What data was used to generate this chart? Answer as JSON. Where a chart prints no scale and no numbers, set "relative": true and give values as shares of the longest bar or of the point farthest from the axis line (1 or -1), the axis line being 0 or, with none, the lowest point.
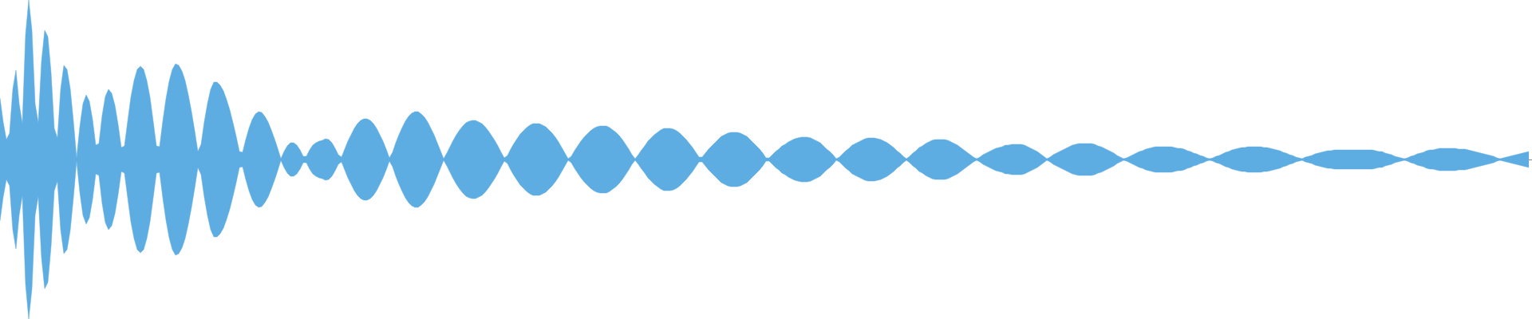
{
  "chart_data": {
    "type": "area",
    "relative": true,
    "categories": [
      null,
      null,
      null,
      null,
      null,
      null,
      null,
      null,
      null,
      null,
      null,
      null,
      null,
      null,
      null,
      null,
      null,
      null,
      null,
      null,
      null,
      null,
      null,
      null,
      null,
      null,
      null,
      null,
      null,
      null,
      null,
      null,
      null,
      null,
      null,
      null,
      null,
      null,
      null,
      null,
      null,
      null,
      null,
      null,
      null,
      null,
      null,
      null,
      null,
      null,
      null,
      null,
      null,
      null,
      null,
      null,
      null,
      null,
      null,
      null,
      null,
      null,
      null,
      null,
      null,
      null,
      null,
      null,
      null,
      null,
      null,
      null,
      null,
      null,
      null,
      null,
      null,
      null,
      null,
      null,
      null,
      null,
      null,
      null,
      null,
      null,
      null,
      null,
      null,
      null,
      null,
      null,
      null,
      null,
      null,
      null,
      null,
      null,
      null,
      null,
      null,
      null,
      null,
      null,
      null,
      null,
      null,
      null,
      null,
      null,
      null,
      null,
      null,
      null,
      null,
      null,
      null,
      null,
      null,
      null,
      null,
      null,
      null,
      null,
      null,
      null,
      null,
      null,
      null,
      null,
      null,
      null,
      null,
      null,
      null,
      null,
      null,
      null,
      null,
      null,
      null,
      null,
      null,
      null,
      null,
      null,
      null,
      null,
      null,
      null,
      null,
      null,
      null,
      null,
      null,
      null,
      null,
      null,
      null,
      null,
      null,
      null,
      null,
      null,
      null,
      null,
      null,
      null,
      null,
      null,
      null,
      null,
      null,
      null,
      null,
      null,
      null,
      null,
      null,
      null,
      null,
      null,
      null,
      null,
      null,
      null,
      null,
      null,
      null,
      null,
      null,
      null,
      null,
      null,
      null,
      null,
      null,
      null,
      null,
      null,
      null,
      null,
      null,
      null,
      null,
      null,
      null,
      null,
      null,
      null,
      null,
      null,
      null,
      null,
      null,
      null,
      null,
      null,
      null,
      null,
      null,
      null,
      null,
      null,
      null,
      null,
      null,
      null,
      null,
      null,
      null,
      null,
      null,
      null,
      null,
      null,
      null,
      null,
      null,
      null,
      null,
      null,
      null,
      null,
      null,
      null,
      null,
      null,
      null,
      null,
      null,
      null,
      null,
      null,
      null,
      null,
      null,
      null,
      null,
      null,
      null,
      null,
      null,
      null,
      null,
      null,
      null,
      null,
      null,
      null,
      null,
      null,
      null,
      null,
      null,
      null,
      null,
      null,
      null,
      null,
      null,
      null,
      null,
      null,
      null,
      null,
      null,
      null,
      null,
      null,
      null,
      null,
      null,
      null,
      null,
      null,
      null,
      null,
      null,
      null,
      null,
      null,
      null,
      null,
      null,
      null,
      null,
      null,
      null,
      null,
      null,
      null,
      null,
      null,
      null,
      null,
      null,
      null,
      null,
      null,
      null,
      null,
      null,
      null,
      null,
      null,
      null,
      null,
      null,
      null,
      null,
      null,
      null,
      null,
      null,
      null,
      null,
      null,
      null,
      null,
      null,
      null,
      null,
      null,
      null,
      null,
      null,
      null,
      null,
      null,
      null,
      null,
      null,
      null,
      null,
      null,
      null,
      null,
      null,
      null,
      null,
      null,
      null,
      null,
      null,
      null,
      null,
      null,
      null,
      null,
      null,
      null,
      null,
      null,
      null,
      null,
      null,
      null,
      null,
      null,
      null,
      null,
      null,
      null,
      null,
      null,
      null,
      null,
      null,
      null,
      null,
      null,
      null,
      null,
      null,
      null,
      null,
      null,
      null,
      null,
      null,
      null,
      null,
      null,
      null,
      null,
      null,
      null,
      null,
      null,
      null,
      null,
      null,
      null,
      null,
      null,
      null,
      null,
      null,
      null,
      null,
      null,
      null,
      null,
      null,
      null,
      null,
      null,
      null,
      null,
      null,
      null,
      null,
      null,
      null,
      null,
      null,
      null,
      null,
      null,
      null,
      null,
      null,
      null,
      null,
      null,
      null,
      null,
      null,
      null,
      null,
      null,
      null,
      null,
      null,
      null,
      null,
      null,
      null,
      null,
      null,
      null,
      null,
      null,
      null,
      null,
      null,
      null,
      null,
      null,
      null,
      null,
      null,
      null,
      null,
      null,
      null,
      null,
      null,
      null
    ],
    "series": [
      {
        "color": "#5dade2",
        "values": [
          0.385,
          0.235,
          0.125,
          0.165,
          0.44,
          0.56,
          0.35,
          0.225,
          0.78,
          1,
          0.81,
          0.35,
          0.23,
          0.615,
          0.81,
          0.77,
          0.545,
          0.195,
          0.135,
          0.44,
          0.59,
          0.565,
          0.445,
          0.24,
          0.01,
          0.205,
          0.35,
          0.405,
          0.365,
          0.25,
          0.09,
          0.1,
          0.275,
          0.395,
          0.44,
          0.415,
          0.34,
          0.22,
          0.075,
          0.085,
          0.24,
          0.39,
          0.495,
          0.565,
          0.585,
          0.565,
          0.495,
          0.39,
          0.24,
          0.085,
          0.08,
          0.24,
          0.38,
          0.49,
          0.565,
          0.6,
          0.59,
          0.555,
          0.495,
          0.405,
          0.3,
          0.18,
          0.05,
          0.095,
          0.235,
          0.35,
          0.44,
          0.485,
          0.485,
          0.465,
          0.43,
          0.375,
          0.31,
          0.23,
          0.145,
          0.05,
          0.045,
          0.125,
          0.195,
          0.25,
          0.285,
          0.3,
          0.295,
          0.27,
          0.235,
          0.185,
          0.13,
          0.07,
          0.005,
          0.05,
          0.085,
          0.105,
          0.105,
          0.09,
          0.06,
          0.02,
          0.02,
          0.06,
          0.09,
          0.105,
          0.115,
          0.12,
          0.13,
          0.125,
          0.105,
          0.07,
          0.03,
          0.015,
          0.065,
          0.115,
          0.155,
          0.195,
          0.225,
          0.245,
          0.255,
          0.255,
          0.245,
          0.225,
          0.195,
          0.155,
          0.115,
          0.065,
          0.01,
          0.045,
          0.105,
          0.155,
          0.2,
          0.24,
          0.27,
          0.29,
          0.3,
          0.3,
          0.285,
          0.265,
          0.235,
          0.195,
          0.155,
          0.105,
          0.055,
          0.005,
          0.04,
          0.08,
          0.12,
          0.155,
          0.185,
          0.21,
          0.23,
          0.24,
          0.245,
          0.245,
          0.235,
          0.225,
          0.205,
          0.18,
          0.15,
          0.12,
          0.085,
          0.045,
          0.01,
          0.025,
          0.065,
          0.1,
          0.13,
          0.16,
          0.18,
          0.2,
          0.215,
          0.225,
          0.225,
          0.225,
          0.215,
          0.205,
          0.185,
          0.165,
          0.14,
          0.11,
          0.075,
          0.04,
          0.005,
          0.02,
          0.055,
          0.085,
          0.115,
          0.14,
          0.16,
          0.18,
          0.195,
          0.205,
          0.21,
          0.21,
          0.21,
          0.2,
          0.185,
          0.17,
          0.15,
          0.125,
          0.095,
          0.065,
          0.03,
          0.005,
          0.03,
          0.06,
          0.085,
          0.115,
          0.135,
          0.155,
          0.17,
          0.185,
          0.195,
          0.195,
          0.195,
          0.19,
          0.18,
          0.165,
          0.145,
          0.125,
          0.1,
          0.075,
          0.045,
          0.015,
          0.015,
          0.04,
          0.065,
          0.085,
          0.105,
          0.125,
          0.145,
          0.155,
          0.165,
          0.17,
          0.17,
          0.17,
          0.165,
          0.155,
          0.145,
          0.125,
          0.105,
          0.085,
          0.065,
          0.04,
          0.01,
          0.01,
          0.03,
          0.05,
          0.065,
          0.085,
          0.095,
          0.11,
          0.12,
          0.13,
          0.135,
          0.14,
          0.14,
          0.14,
          0.135,
          0.125,
          0.115,
          0.105,
          0.085,
          0.065,
          0.05,
          0.03,
          0.005,
          0.015,
          0.035,
          0.055,
          0.07,
          0.09,
          0.1,
          0.11,
          0.12,
          0.13,
          0.135,
          0.135,
          0.135,
          0.13,
          0.125,
          0.115,
          0.105,
          0.09,
          0.075,
          0.055,
          0.04,
          0.02,
          0.005,
          0.02,
          0.04,
          0.055,
          0.075,
          0.085,
          0.1,
          0.11,
          0.12,
          0.125,
          0.125,
          0.125,
          0.125,
          0.12,
          0.11,
          0.1,
          0.09,
          0.075,
          0.06,
          0.045,
          0.03,
          0.015,
          0.005,
          0.015,
          0.03,
          0.04,
          0.05,
          0.06,
          0.07,
          0.075,
          0.08,
          0.09,
          0.09,
          0.095,
          0.095,
          0.095,
          0.095,
          0.09,
          0.08,
          0.07,
          0.06,
          0.05,
          0.035,
          0.02,
          0.005,
          0.015,
          0.03,
          0.04,
          0.05,
          0.06,
          0.07,
          0.08,
          0.09,
          0.095,
          0.1,
          0.1,
          0.1,
          0.1,
          0.1,
          0.095,
          0.085,
          0.08,
          0.07,
          0.06,
          0.05,
          0.04,
          0.025,
          0.015,
          0.005,
          0.01,
          0.02,
          0.03,
          0.04,
          0.05,
          0.055,
          0.065,
          0.07,
          0.075,
          0.08,
          0.08,
          0.08,
          0.08,
          0.08,
          0.08,
          0.075,
          0.07,
          0.07,
          0.065,
          0.055,
          0.05,
          0.04,
          0.035,
          0.025,
          0.02,
          0.01,
          0.005,
          0.01,
          0.02,
          0.025,
          0.035,
          0.045,
          0.05,
          0.06,
          0.065,
          0.07,
          0.075,
          0.075,
          0.08,
          0.08,
          0.08,
          0.08,
          0.08,
          0.075,
          0.075,
          0.07,
          0.065,
          0.06,
          0.055,
          0.045,
          0.04,
          0.03,
          0.025,
          0.015,
          0.01,
          0.005,
          0.015,
          0.02,
          0.025,
          0.035,
          0.04,
          0.045,
          0.05,
          0.055,
          0.055,
          0.06,
          0.06,
          0.06,
          0.06,
          0.06,
          0.06,
          0.06,
          0.06,
          0.06,
          0.06,
          0.06,
          0.06,
          0.06,
          0.055,
          0.05,
          0.05,
          0.04,
          0.035,
          0.03,
          0.02,
          0.015,
          0.01,
          0.005,
          0.01,
          0.02,
          0.025,
          0.035,
          0.04,
          0.045,
          0.055,
          0.06,
          0.06,
          0.065,
          0.07,
          0.07,
          0.07,
          0.07,
          0.07,
          0.07,
          0.065,
          0.065,
          0.065,
          0.06,
          0.055,
          0.05,
          0.045,
          0.04,
          0.035,
          0.03,
          0.025,
          0.02,
          0.01,
          0.005,
          0.01,
          0.015,
          0.02,
          0.025,
          0.03,
          0.035,
          0.04,
          0.045,
          0.05
        ]
      },
      {
        "color": "#5dade2",
        "values": [
          -0.385,
          -0.235,
          -0.125,
          -0.165,
          -0.44,
          -0.56,
          -0.35,
          -0.225,
          -0.78,
          -1,
          -0.81,
          -0.35,
          -0.23,
          -0.615,
          -0.81,
          -0.77,
          -0.545,
          -0.195,
          -0.135,
          -0.44,
          -0.59,
          -0.565,
          -0.445,
          -0.24,
          -0.01,
          -0.205,
          -0.35,
          -0.405,
          -0.365,
          -0.25,
          -0.09,
          -0.1,
          -0.275,
          -0.395,
          -0.44,
          -0.415,
          -0.34,
          -0.22,
          -0.075,
          -0.085,
          -0.24,
          -0.39,
          -0.495,
          -0.565,
          -0.585,
          -0.565,
          -0.495,
          -0.39,
          -0.24,
          -0.085,
          -0.08,
          -0.24,
          -0.38,
          -0.49,
          -0.565,
          -0.6,
          -0.59,
          -0.555,
          -0.495,
          -0.405,
          -0.3,
          -0.18,
          -0.05,
          -0.095,
          -0.235,
          -0.35,
          -0.44,
          -0.485,
          -0.485,
          -0.465,
          -0.43,
          -0.375,
          -0.31,
          -0.23,
          -0.145,
          -0.05,
          -0.045,
          -0.125,
          -0.195,
          -0.25,
          -0.285,
          -0.3,
          -0.295,
          -0.27,
          -0.235,
          -0.185,
          -0.13,
          -0.07,
          -0.005,
          -0.05,
          -0.085,
          -0.105,
          -0.105,
          -0.09,
          -0.06,
          -0.02,
          -0.02,
          -0.06,
          -0.09,
          -0.105,
          -0.115,
          -0.12,
          -0.13,
          -0.125,
          -0.105,
          -0.07,
          -0.03,
          -0.015,
          -0.065,
          -0.115,
          -0.155,
          -0.195,
          -0.225,
          -0.245,
          -0.255,
          -0.255,
          -0.245,
          -0.225,
          -0.195,
          -0.155,
          -0.115,
          -0.065,
          -0.01,
          -0.045,
          -0.105,
          -0.155,
          -0.2,
          -0.24,
          -0.27,
          -0.29,
          -0.3,
          -0.3,
          -0.285,
          -0.265,
          -0.235,
          -0.195,
          -0.155,
          -0.105,
          -0.055,
          -0.005,
          -0.04,
          -0.08,
          -0.12,
          -0.155,
          -0.185,
          -0.21,
          -0.23,
          -0.24,
          -0.245,
          -0.245,
          -0.235,
          -0.225,
          -0.205,
          -0.18,
          -0.15,
          -0.12,
          -0.085,
          -0.045,
          -0.01,
          -0.025,
          -0.065,
          -0.1,
          -0.13,
          -0.16,
          -0.18,
          -0.2,
          -0.215,
          -0.225,
          -0.225,
          -0.225,
          -0.215,
          -0.205,
          -0.185,
          -0.165,
          -0.14,
          -0.11,
          -0.075,
          -0.04,
          -0.005,
          -0.02,
          -0.055,
          -0.085,
          -0.115,
          -0.14,
          -0.16,
          -0.18,
          -0.195,
          -0.205,
          -0.21,
          -0.21,
          -0.21,
          -0.2,
          -0.185,
          -0.17,
          -0.15,
          -0.125,
          -0.095,
          -0.065,
          -0.03,
          -0.005,
          -0.03,
          -0.06,
          -0.085,
          -0.115,
          -0.135,
          -0.155,
          -0.17,
          -0.185,
          -0.195,
          -0.195,
          -0.195,
          -0.19,
          -0.18,
          -0.165,
          -0.145,
          -0.125,
          -0.1,
          -0.075,
          -0.045,
          -0.015,
          -0.015,
          -0.04,
          -0.065,
          -0.085,
          -0.105,
          -0.125,
          -0.145,
          -0.155,
          -0.165,
          -0.17,
          -0.17,
          -0.17,
          -0.165,
          -0.155,
          -0.145,
          -0.125,
          -0.105,
          -0.085,
          -0.065,
          -0.04,
          -0.01,
          -0.01,
          -0.03,
          -0.05,
          -0.065,
          -0.085,
          -0.095,
          -0.11,
          -0.12,
          -0.13,
          -0.135,
          -0.14,
          -0.14,
          -0.14,
          -0.135,
          -0.125,
          -0.115,
          -0.105,
          -0.085,
          -0.065,
          -0.05,
          -0.03,
          -0.005,
          -0.015,
          -0.035,
          -0.055,
          -0.07,
          -0.09,
          -0.1,
          -0.11,
          -0.12,
          -0.13,
          -0.135,
          -0.135,
          -0.135,
          -0.13,
          -0.125,
          -0.115,
          -0.105,
          -0.09,
          -0.075,
          -0.055,
          -0.04,
          -0.02,
          -0.005,
          -0.02,
          -0.04,
          -0.055,
          -0.075,
          -0.085,
          -0.1,
          -0.11,
          -0.12,
          -0.125,
          -0.125,
          -0.125,
          -0.125,
          -0.12,
          -0.11,
          -0.1,
          -0.09,
          -0.075,
          -0.06,
          -0.045,
          -0.03,
          -0.015,
          -0.005,
          -0.015,
          -0.03,
          -0.04,
          -0.05,
          -0.06,
          -0.07,
          -0.075,
          -0.08,
          -0.09,
          -0.09,
          -0.095,
          -0.095,
          -0.095,
          -0.095,
          -0.09,
          -0.08,
          -0.07,
          -0.06,
          -0.05,
          -0.035,
          -0.02,
          -0.005,
          -0.015,
          -0.03,
          -0.04,
          -0.05,
          -0.06,
          -0.07,
          -0.08,
          -0.09,
          -0.095,
          -0.1,
          -0.1,
          -0.1,
          -0.1,
          -0.1,
          -0.095,
          -0.085,
          -0.08,
          -0.07,
          -0.06,
          -0.05,
          -0.04,
          -0.025,
          -0.015,
          -0.005,
          -0.01,
          -0.02,
          -0.03,
          -0.04,
          -0.05,
          -0.055,
          -0.065,
          -0.07,
          -0.075,
          -0.08,
          -0.08,
          -0.08,
          -0.08,
          -0.08,
          -0.08,
          -0.075,
          -0.07,
          -0.07,
          -0.065,
          -0.055,
          -0.05,
          -0.04,
          -0.035,
          -0.025,
          -0.02,
          -0.01,
          -0.005,
          -0.01,
          -0.02,
          -0.025,
          -0.035,
          -0.045,
          -0.05,
          -0.06,
          -0.065,
          -0.07,
          -0.075,
          -0.075,
          -0.08,
          -0.08,
          -0.08,
          -0.08,
          -0.08,
          -0.075,
          -0.075,
          -0.07,
          -0.065,
          -0.06,
          -0.055,
          -0.045,
          -0.04,
          -0.03,
          -0.025,
          -0.015,
          -0.01,
          -0.005,
          -0.015,
          -0.02,
          -0.025,
          -0.035,
          -0.04,
          -0.045,
          -0.05,
          -0.055,
          -0.055,
          -0.06,
          -0.06,
          -0.06,
          -0.06,
          -0.06,
          -0.06,
          -0.06,
          -0.06,
          -0.06,
          -0.06,
          -0.06,
          -0.06,
          -0.06,
          -0.055,
          -0.05,
          -0.05,
          -0.04,
          -0.035,
          -0.03,
          -0.02,
          -0.015,
          -0.01,
          -0.005,
          -0.01,
          -0.02,
          -0.025,
          -0.035,
          -0.04,
          -0.045,
          -0.055,
          -0.06,
          -0.06,
          -0.065,
          -0.07,
          -0.07,
          -0.07,
          -0.07,
          -0.07,
          -0.07,
          -0.065,
          -0.065,
          -0.065,
          -0.06,
          -0.055,
          -0.05,
          -0.045,
          -0.04,
          -0.035,
          -0.03,
          -0.025,
          -0.02,
          -0.01,
          -0.005,
          -0.01,
          -0.015,
          -0.02,
          -0.025,
          -0.03,
          -0.035,
          -0.04,
          -0.045,
          -0.05
        ]
      }
    ]
  }
}
